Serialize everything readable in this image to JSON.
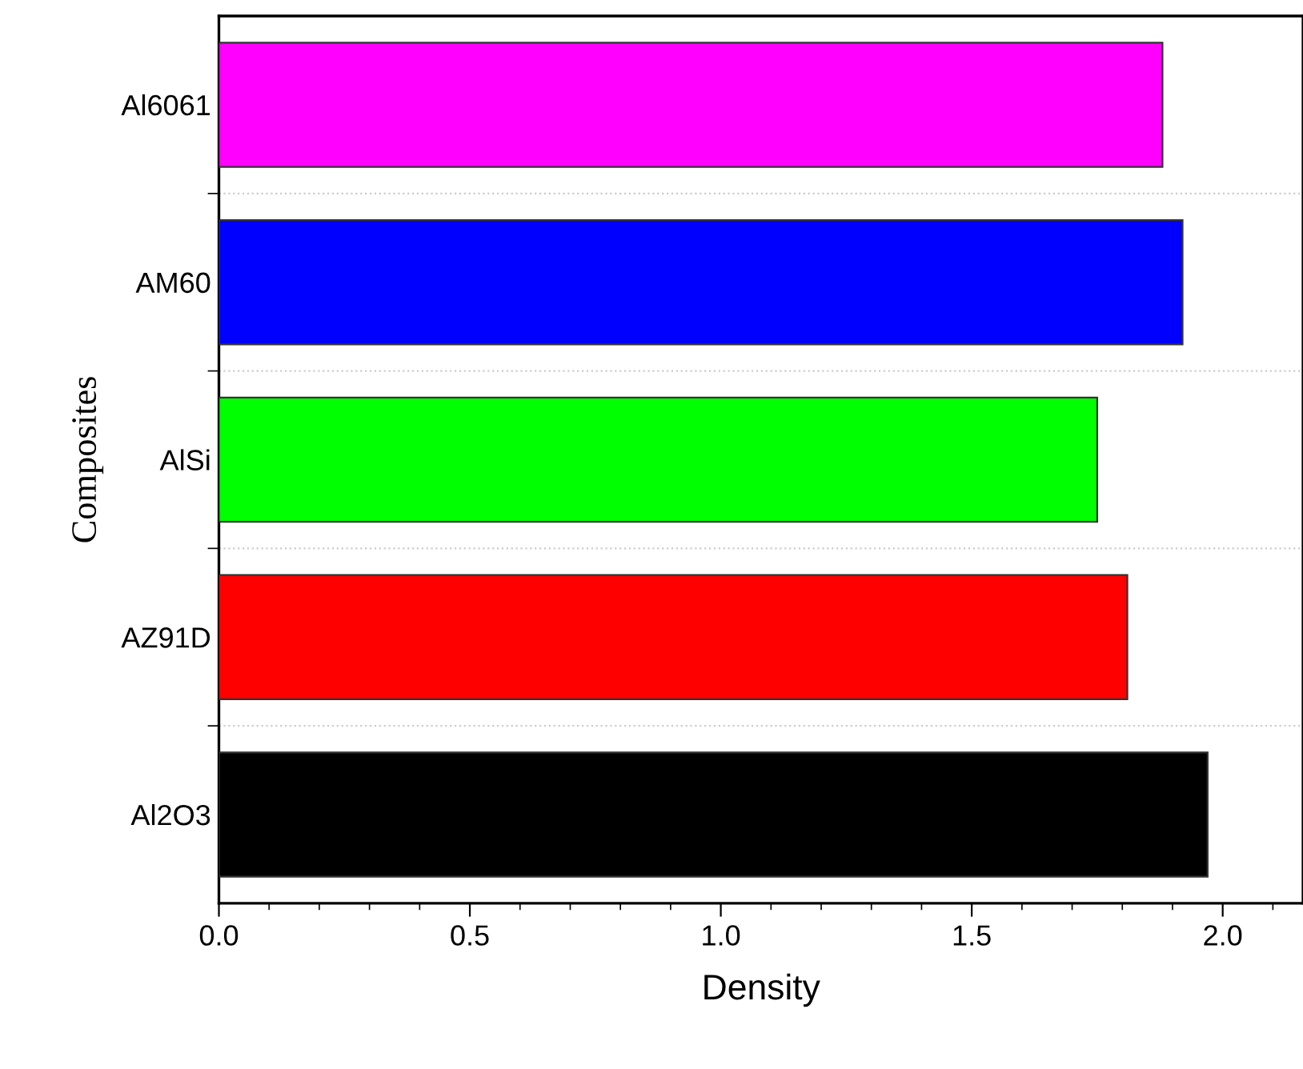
{
  "chart_data": {
    "type": "bar",
    "orientation": "horizontal",
    "xlabel": "Density",
    "ylabel": "Composites",
    "categories": [
      "Al6061",
      "AM60",
      "AlSi",
      "AZ91D",
      "Al2O3"
    ],
    "values": [
      1.88,
      1.92,
      1.75,
      1.81,
      1.97
    ],
    "colors": [
      "#ff00ff",
      "#0000ff",
      "#00ff00",
      "#ff0000",
      "#000000"
    ],
    "xlim": [
      0,
      2.16
    ],
    "xticks": [
      {
        "value": 0,
        "label": "0.0"
      },
      {
        "value": 0.5,
        "label": "0.5"
      },
      {
        "value": 1,
        "label": "1.0"
      },
      {
        "value": 1.5,
        "label": "1.5"
      },
      {
        "value": 2,
        "label": "2.0"
      }
    ],
    "grid": "y"
  }
}
